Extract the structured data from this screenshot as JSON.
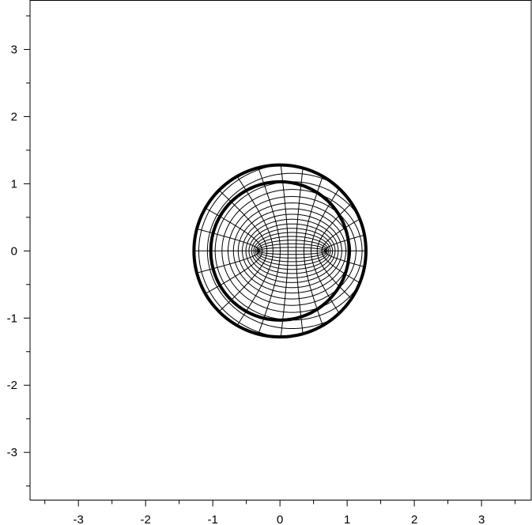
{
  "chart_data": {
    "type": "line",
    "title": "",
    "xlabel": "",
    "ylabel": "",
    "xlim": [
      -3.72,
      3.74
    ],
    "ylim": [
      -3.71,
      3.73
    ],
    "grid": false,
    "x_ticks": [
      "-3",
      "-2",
      "-1",
      "0",
      "1",
      "2",
      "3"
    ],
    "y_ticks": [
      "3",
      "2",
      "1",
      "0",
      "-1",
      "-2",
      "-3"
    ],
    "minor_tick_step": 0.5,
    "circles": [
      {
        "center": [
          0,
          0
        ],
        "radius": 1.28
      },
      {
        "center": [
          0,
          0
        ],
        "radius": 1.03
      }
    ],
    "mesh": {
      "kind": "confocal ellipses and hyperbolas",
      "foci": [
        [
          -0.32,
          0
        ],
        [
          0.68,
          0
        ]
      ],
      "clip_radius": 1.28
    },
    "colors": {
      "line": "#000000",
      "background": "#ffffff"
    }
  }
}
